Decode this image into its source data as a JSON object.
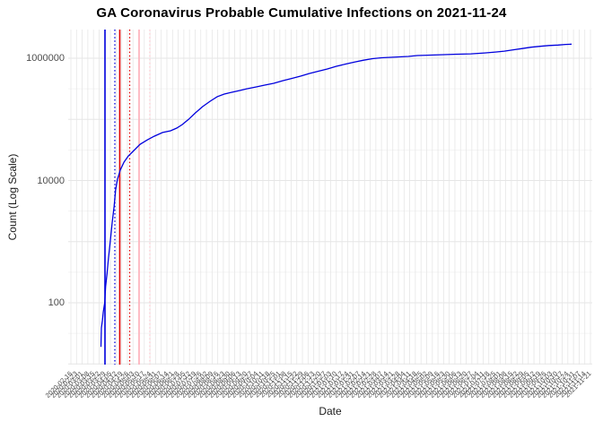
{
  "title": "GA Coronavirus Probable Cumulative Infections on 2021-11-24",
  "x_axis": {
    "label": "Date",
    "tick_labels": [
      "2020-02-16",
      "2020-02-23",
      "2020-03-01",
      "2020-03-08",
      "2020-03-15",
      "2020-03-22",
      "2020-03-29",
      "2020-04-05",
      "2020-04-12",
      "2020-04-19",
      "2020-04-26",
      "2020-05-03",
      "2020-05-10",
      "2020-05-17",
      "2020-05-24",
      "2020-05-31",
      "2020-06-07",
      "2020-06-14",
      "2020-06-21",
      "2020-06-28",
      "2020-07-05",
      "2020-07-12",
      "2020-07-19",
      "2020-07-26",
      "2020-08-02",
      "2020-08-09",
      "2020-08-16",
      "2020-08-23",
      "2020-08-30",
      "2020-09-06",
      "2020-09-13",
      "2020-09-20",
      "2020-09-27",
      "2020-10-04",
      "2020-10-11",
      "2020-10-18",
      "2020-10-25",
      "2020-11-01",
      "2020-11-08",
      "2020-11-15",
      "2020-11-22",
      "2020-11-29",
      "2020-12-06",
      "2020-12-13",
      "2020-12-20",
      "2020-12-27",
      "2021-01-03",
      "2021-01-10",
      "2021-01-17",
      "2021-01-24",
      "2021-01-31",
      "2021-02-07",
      "2021-02-14",
      "2021-02-21",
      "2021-02-28",
      "2021-03-07",
      "2021-03-14",
      "2021-03-21",
      "2021-03-28",
      "2021-04-04",
      "2021-04-11",
      "2021-04-18",
      "2021-04-25",
      "2021-05-02",
      "2021-05-09",
      "2021-05-16",
      "2021-05-23",
      "2021-05-30",
      "2021-06-06",
      "2021-06-13",
      "2021-06-20",
      "2021-06-27",
      "2021-07-04",
      "2021-07-11",
      "2021-07-18",
      "2021-07-25",
      "2021-08-01",
      "2021-08-08",
      "2021-08-15",
      "2021-08-22",
      "2021-08-29",
      "2021-09-05",
      "2021-09-12",
      "2021-09-19",
      "2021-09-26",
      "2021-10-03",
      "2021-10-10",
      "2021-10-17",
      "2021-10-24",
      "2021-10-31",
      "2021-11-07",
      "2021-11-14",
      "2021-11-21"
    ]
  },
  "y_axis": {
    "label": "Count (Log Scale)",
    "tick_labels": [
      "100",
      "10000",
      "1000000"
    ]
  },
  "colors": {
    "line": "#0000DE",
    "grid": "#E6E6E6",
    "grid_minor": "#F0F0F0",
    "tick_text": "#4D4D4D",
    "title_text": "#000000",
    "vline_blue": "#0000DE",
    "vline_red": "#E00000",
    "vline_pink": "#FFAFB9",
    "vline_pink_dotted": "#FFC9D0"
  },
  "chart_data": {
    "type": "line",
    "title": "GA Coronavirus Probable Cumulative Infections on 2021-11-24",
    "xlabel": "Date",
    "ylabel": "Count (Log Scale)",
    "y_scale": "log10",
    "y_ticks": [
      100,
      10000,
      1000000
    ],
    "ylim": [
      10,
      3000000
    ],
    "x_range": [
      "2020-02-16",
      "2021-11-24"
    ],
    "grid": true,
    "legend": "none",
    "x_points_unit": "fraction of date range",
    "series": [
      {
        "name": "Probable Cumulative Infections",
        "color": "#0000DE",
        "points": [
          [
            0.0,
            19
          ],
          [
            0.001,
            39
          ],
          [
            0.003,
            51
          ],
          [
            0.005,
            71
          ],
          [
            0.008,
            100
          ],
          [
            0.01,
            185
          ],
          [
            0.013,
            300
          ],
          [
            0.016,
            540
          ],
          [
            0.02,
            1050
          ],
          [
            0.024,
            2100
          ],
          [
            0.028,
            3800
          ],
          [
            0.031,
            7000
          ],
          [
            0.035,
            10500
          ],
          [
            0.041,
            14800
          ],
          [
            0.049,
            20000
          ],
          [
            0.058,
            25000
          ],
          [
            0.07,
            31000
          ],
          [
            0.083,
            39000
          ],
          [
            0.098,
            46000
          ],
          [
            0.113,
            53000
          ],
          [
            0.131,
            61000
          ],
          [
            0.148,
            65000
          ],
          [
            0.161,
            72000
          ],
          [
            0.173,
            82500
          ],
          [
            0.186,
            100000
          ],
          [
            0.201,
            128000
          ],
          [
            0.216,
            162000
          ],
          [
            0.232,
            198000
          ],
          [
            0.247,
            235000
          ],
          [
            0.262,
            259000
          ],
          [
            0.277,
            277000
          ],
          [
            0.293,
            295000
          ],
          [
            0.31,
            316000
          ],
          [
            0.329,
            339000
          ],
          [
            0.348,
            363000
          ],
          [
            0.367,
            389000
          ],
          [
            0.386,
            429000
          ],
          [
            0.405,
            467000
          ],
          [
            0.424,
            510000
          ],
          [
            0.443,
            563000
          ],
          [
            0.462,
            614000
          ],
          [
            0.481,
            668000
          ],
          [
            0.5,
            737000
          ],
          [
            0.52,
            803000
          ],
          [
            0.539,
            869000
          ],
          [
            0.558,
            930000
          ],
          [
            0.577,
            982000
          ],
          [
            0.596,
            1017000
          ],
          [
            0.615,
            1035000
          ],
          [
            0.634,
            1052000
          ],
          [
            0.653,
            1070000
          ],
          [
            0.672,
            1106000
          ],
          [
            0.701,
            1124000
          ],
          [
            0.729,
            1143000
          ],
          [
            0.758,
            1162000
          ],
          [
            0.786,
            1181000
          ],
          [
            0.815,
            1221000
          ],
          [
            0.838,
            1263000
          ],
          [
            0.857,
            1306000
          ],
          [
            0.876,
            1372000
          ],
          [
            0.895,
            1441000
          ],
          [
            0.914,
            1514000
          ],
          [
            0.933,
            1565000
          ],
          [
            0.952,
            1617000
          ],
          [
            0.971,
            1644000
          ],
          [
            0.987,
            1682000
          ],
          [
            1.0,
            1700000
          ]
        ]
      }
    ],
    "vlines": [
      {
        "x_frac": 0.0702,
        "color": "#0000DE",
        "style": "solid"
      },
      {
        "x_frac": 0.089,
        "color": "#0000DE",
        "style": "dotted"
      },
      {
        "x_frac": 0.0984,
        "color": "#E00000",
        "style": "solid"
      },
      {
        "x_frac": 0.1173,
        "color": "#E00000",
        "style": "dotted"
      },
      {
        "x_frac": 0.1353,
        "color": "#FFAFB9",
        "style": "solid"
      },
      {
        "x_frac": 0.1558,
        "color": "#FFC9D0",
        "style": "dotted"
      }
    ]
  }
}
